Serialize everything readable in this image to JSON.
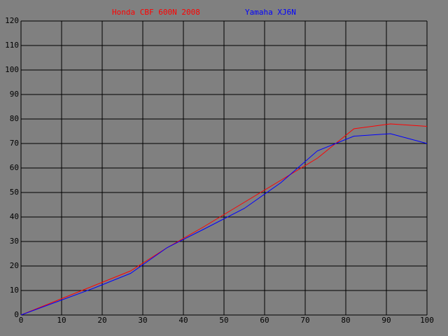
{
  "chart_data": {
    "type": "line",
    "x": [
      0,
      9,
      18,
      27,
      36,
      45,
      55,
      64,
      73,
      82,
      91,
      100
    ],
    "series": [
      {
        "name": "Honda CBF 600N 2008",
        "color": "#ff0000",
        "values": [
          0,
          6,
          12,
          18,
          27.5,
          36,
          46,
          55,
          64,
          76,
          78,
          77
        ]
      },
      {
        "name": "Yamaha XJ6N",
        "color": "#0000ff",
        "values": [
          0,
          5.5,
          11,
          17,
          27.5,
          35,
          43.5,
          54,
          67,
          73,
          74,
          70
        ]
      }
    ],
    "xlim": [
      0,
      100
    ],
    "xticks": [
      0,
      10,
      20,
      30,
      40,
      50,
      60,
      70,
      80,
      90,
      100
    ],
    "ylim": [
      0,
      120
    ],
    "yticks": [
      0,
      10,
      20,
      30,
      40,
      50,
      60,
      70,
      80,
      90,
      100,
      110,
      120
    ],
    "grid": true
  }
}
